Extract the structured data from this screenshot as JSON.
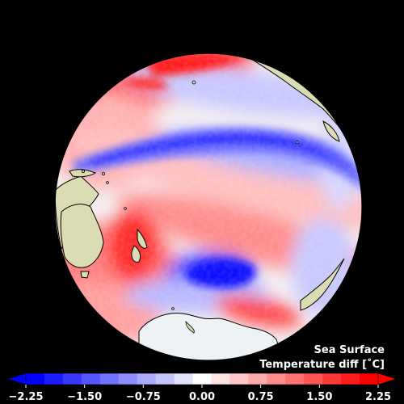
{
  "map": {
    "background_color": "#000000",
    "ocean_neutral_color": "#ffffff",
    "land_color": "#dcdcb4",
    "ice_color": "#eef2f5",
    "land_labels": [
      "Asia",
      "Australia",
      "New Zealand",
      "Antarctica",
      "South America"
    ]
  },
  "caption": {
    "line1": "Sea Surface",
    "line2": "Temperature diff [˚C]"
  },
  "colorbar": {
    "vmin": -2.25,
    "vmax": 2.25,
    "extend": "both",
    "cold_color": "#0000ff",
    "warm_color": "#ff0000",
    "bins": [
      "#0000ff",
      "#1c1cff",
      "#3838ff",
      "#5555ff",
      "#7171ff",
      "#8d8dff",
      "#aaaaff",
      "#c6c6ff",
      "#e2e2ff",
      "#ffffff",
      "#ffe2e2",
      "#ffc6c6",
      "#ffaaaa",
      "#ff8d8d",
      "#ff7171",
      "#ff5555",
      "#ff3838",
      "#ff1c1c",
      "#ff0000"
    ],
    "ticks": [
      {
        "value": -2.25,
        "label": "−2.25"
      },
      {
        "value": -1.5,
        "label": "−1.50"
      },
      {
        "value": -0.75,
        "label": "−0.75"
      },
      {
        "value": 0.0,
        "label": "0.00"
      },
      {
        "value": 0.75,
        "label": "0.75"
      },
      {
        "value": 1.5,
        "label": "1.50"
      },
      {
        "value": 2.25,
        "label": "2.25"
      }
    ]
  }
}
